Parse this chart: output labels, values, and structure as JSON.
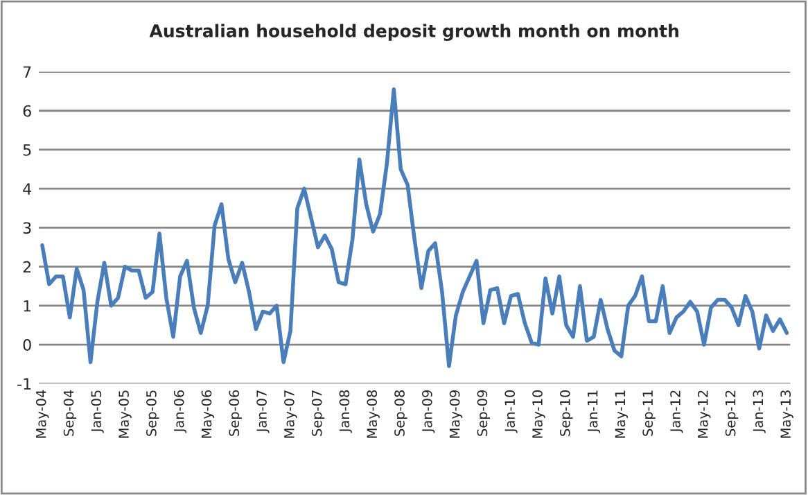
{
  "chart_data": {
    "type": "line",
    "title": "Australian household deposit growth month on month",
    "categories": [
      "May-04",
      null,
      null,
      null,
      "Sep-04",
      null,
      null,
      null,
      "Jan-05",
      null,
      null,
      null,
      "May-05",
      null,
      null,
      null,
      "Sep-05",
      null,
      null,
      null,
      "Jan-06",
      null,
      null,
      null,
      "May-06",
      null,
      null,
      null,
      "Sep-06",
      null,
      null,
      null,
      "Jan-07",
      null,
      null,
      null,
      "May-07",
      null,
      null,
      null,
      "Sep-07",
      null,
      null,
      null,
      "Jan-08",
      null,
      null,
      null,
      "May-08",
      null,
      null,
      null,
      "Sep-08",
      null,
      null,
      null,
      "Jan-09",
      null,
      null,
      null,
      "May-09",
      null,
      null,
      null,
      "Sep-09",
      null,
      null,
      null,
      "Jan-10",
      null,
      null,
      null,
      "May-10",
      null,
      null,
      null,
      "Sep-10",
      null,
      null,
      null,
      "Jan-11",
      null,
      null,
      null,
      "May-11",
      null,
      null,
      null,
      "Sep-11",
      null,
      null,
      null,
      "Jan-12",
      null,
      null,
      null,
      "May-12",
      null,
      null,
      null,
      "Sep-12",
      null,
      null,
      null,
      "Jan-13",
      null,
      null,
      null,
      "May-13"
    ],
    "series": [
      {
        "color": "#4a7ebb",
        "values": [
          2.55,
          1.55,
          1.75,
          1.75,
          0.7,
          1.95,
          1.4,
          -0.45,
          1.1,
          2.1,
          1.0,
          1.2,
          2.0,
          1.9,
          1.9,
          1.2,
          1.35,
          2.85,
          1.2,
          0.2,
          1.75,
          2.15,
          0.95,
          0.3,
          1.0,
          3.05,
          3.6,
          2.2,
          1.6,
          2.1,
          1.35,
          0.4,
          0.85,
          0.8,
          1.0,
          -0.45,
          0.35,
          3.5,
          4.0,
          3.25,
          2.5,
          2.8,
          2.45,
          1.6,
          1.55,
          2.7,
          4.75,
          3.6,
          2.9,
          3.35,
          4.65,
          6.55,
          4.5,
          4.1,
          2.7,
          1.45,
          2.4,
          2.6,
          1.35,
          -0.55,
          0.75,
          1.35,
          1.75,
          2.15,
          0.55,
          1.4,
          1.45,
          0.55,
          1.25,
          1.3,
          0.55,
          0.05,
          0.0,
          1.7,
          0.8,
          1.75,
          0.5,
          0.2,
          1.5,
          0.1,
          0.2,
          1.15,
          0.4,
          -0.15,
          -0.3,
          1.0,
          1.25,
          1.75,
          0.6,
          0.6,
          1.5,
          0.3,
          0.7,
          0.85,
          1.1,
          0.85,
          0.0,
          0.95,
          1.15,
          1.15,
          0.95,
          0.5,
          1.25,
          0.85,
          -0.1,
          0.75,
          0.35,
          0.65,
          0.3
        ]
      }
    ],
    "ylim": [
      -1,
      7
    ],
    "yticks": [
      -1,
      0,
      1,
      2,
      3,
      4,
      5,
      6,
      7
    ],
    "grid": "y",
    "marker": "none",
    "line_style": "solid"
  }
}
